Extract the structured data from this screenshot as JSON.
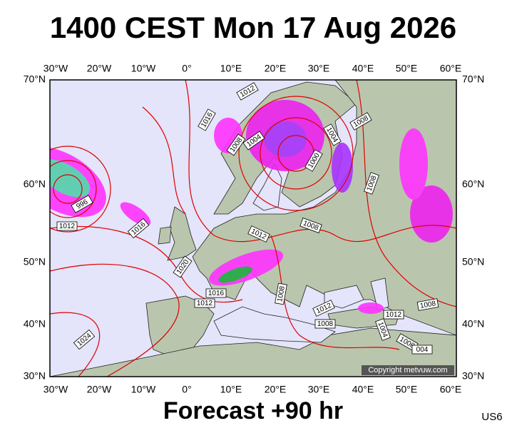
{
  "header": {
    "title": "1400 CEST Mon 17 Aug 2026"
  },
  "axes": {
    "longitudes": [
      "30°W",
      "20°W",
      "10°W",
      "0°",
      "10°E",
      "20°E",
      "30°E",
      "40°E",
      "50°E",
      "60°E"
    ],
    "latitudes": [
      "70°N",
      "60°N",
      "50°N",
      "40°N",
      "30°N"
    ]
  },
  "isobar_labels": [
    "1012",
    "1016",
    "1008",
    "1004",
    "1004",
    "1008",
    "1000",
    "1008",
    "996",
    "1012",
    "1016",
    "1012",
    "1008",
    "1020",
    "1016",
    "1012",
    "1008",
    "1012",
    "1008",
    "1012",
    "1008",
    "1004",
    "1008",
    "004",
    "1024"
  ],
  "copyright": "Copyright metvuw.com",
  "footer": {
    "forecast": "Forecast +90 hr",
    "code": "US6"
  }
}
